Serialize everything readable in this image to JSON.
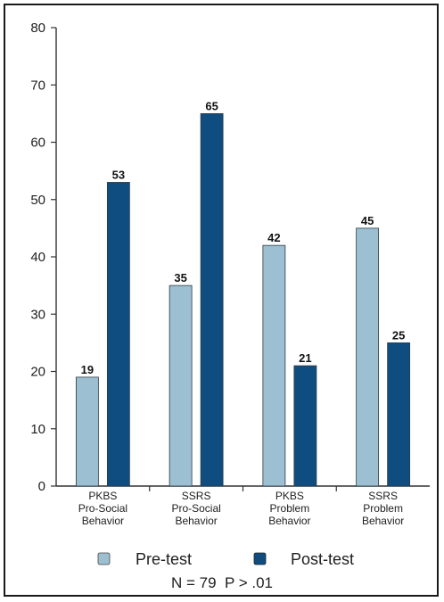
{
  "chart_data": {
    "type": "bar",
    "categories": [
      [
        "PKBS",
        "Pro-Social",
        "Behavior"
      ],
      [
        "SSRS",
        "Pro-Social",
        "Behavior"
      ],
      [
        "PKBS",
        "Problem",
        "Behavior"
      ],
      [
        "SSRS",
        "Problem",
        "Behavior"
      ]
    ],
    "series": [
      {
        "name": "Pre-test",
        "color": "#9dbfd2",
        "values": [
          19,
          35,
          42,
          45
        ]
      },
      {
        "name": "Post-test",
        "color": "#0f4d80",
        "values": [
          53,
          65,
          21,
          25
        ]
      }
    ],
    "ylim": [
      0,
      80
    ],
    "yticks": [
      0,
      10,
      20,
      30,
      40,
      50,
      60,
      70,
      80
    ],
    "data_labels": true,
    "grid": false,
    "legend": "bottom",
    "note": "N = 79  P > .01"
  }
}
